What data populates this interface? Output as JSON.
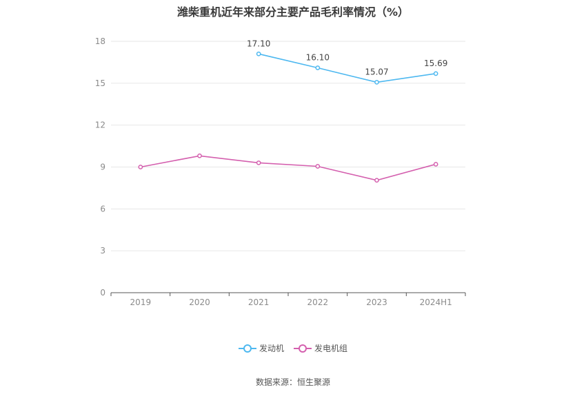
{
  "title": "潍柴重机近年来部分主要产品毛利率情况（%）",
  "source": "数据来源：恒生聚源",
  "chart_data": {
    "type": "line",
    "title": "潍柴重机近年来部分主要产品毛利率情况（%）",
    "categories": [
      "2019",
      "2020",
      "2021",
      "2022",
      "2023",
      "2024H1"
    ],
    "ylim": [
      0,
      18
    ],
    "yticks": [
      0,
      3,
      6,
      9,
      12,
      15,
      18
    ],
    "grid": true,
    "legend": "bottom-center",
    "series": [
      {
        "name": "发动机",
        "color": "#4db8f0",
        "values": [
          null,
          null,
          17.1,
          16.1,
          15.07,
          15.69
        ],
        "labels": [
          "",
          "",
          "17.10",
          "16.10",
          "15.07",
          "15.69"
        ]
      },
      {
        "name": "发电机组",
        "color": "#d45fae",
        "values": [
          9.0,
          9.8,
          9.3,
          9.05,
          8.05,
          9.2
        ],
        "labels": [
          "",
          "",
          "",
          "",
          "",
          ""
        ]
      }
    ]
  }
}
